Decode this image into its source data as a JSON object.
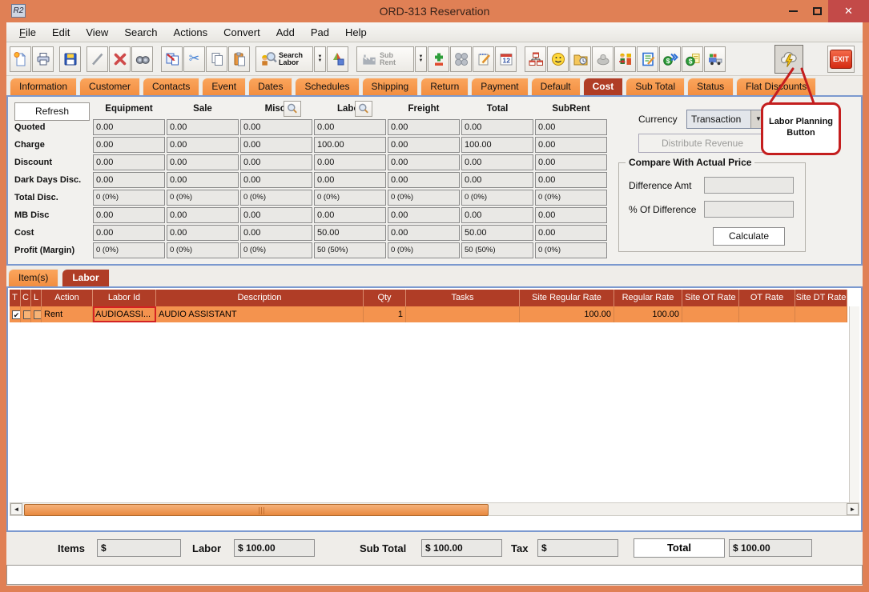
{
  "window": {
    "title": "ORD-313 Reservation",
    "app_icon": "R2"
  },
  "menu": {
    "items": [
      "File",
      "Edit",
      "View",
      "Search",
      "Actions",
      "Convert",
      "Add",
      "Pad",
      "Help"
    ]
  },
  "toolbar": {
    "search_labor": "Search Labor",
    "sub_rent": "Sub Rent",
    "exit": "EXIT",
    "icons": [
      "new-icon",
      "print-icon",
      "save-icon",
      "edit-icon",
      "delete-icon",
      "find-icon",
      "copy-order-icon",
      "cut-icon",
      "copy-icon",
      "paste-icon",
      "search-labor-icon",
      "search-labor-options-icon",
      "convert-icon",
      "sub-rent-icon",
      "sub-rent-options-icon",
      "add-remove-icon",
      "group-icon",
      "notes-icon",
      "calendar-icon",
      "org-chart-icon",
      "customer-icon",
      "history-icon",
      "stamp-icon",
      "labor-crew-icon",
      "edit-notes-icon",
      "post-charges-icon",
      "billing-icon",
      "shipping-icon",
      "labor-planning-icon",
      "exit-icon"
    ]
  },
  "tabs": {
    "items": [
      "Information",
      "Customer",
      "Contacts",
      "Event",
      "Dates",
      "Schedules",
      "Shipping",
      "Return",
      "Payment",
      "Default",
      "Cost",
      "Sub Total",
      "Status",
      "Flat Discounts"
    ],
    "active": "Cost"
  },
  "cost_panel": {
    "refresh": "Refresh",
    "columns": [
      "Equipment",
      "Sale",
      "Misc.",
      "Labor",
      "Freight",
      "Total",
      "SubRent"
    ],
    "rows": [
      {
        "label": "Quoted",
        "small": false,
        "values": [
          "0.00",
          "0.00",
          "0.00",
          "0.00",
          "0.00",
          "0.00",
          "0.00"
        ]
      },
      {
        "label": "Charge",
        "small": false,
        "values": [
          "0.00",
          "0.00",
          "0.00",
          "100.00",
          "0.00",
          "100.00",
          "0.00"
        ]
      },
      {
        "label": "Discount",
        "small": false,
        "values": [
          "0.00",
          "0.00",
          "0.00",
          "0.00",
          "0.00",
          "0.00",
          "0.00"
        ]
      },
      {
        "label": "Dark Days Disc.",
        "small": false,
        "values": [
          "0.00",
          "0.00",
          "0.00",
          "0.00",
          "0.00",
          "0.00",
          "0.00"
        ]
      },
      {
        "label": "Total Disc.",
        "small": true,
        "values": [
          "0 (0%)",
          "0 (0%)",
          "0 (0%)",
          "0 (0%)",
          "0 (0%)",
          "0 (0%)",
          "0 (0%)"
        ]
      },
      {
        "label": "MB Disc",
        "small": false,
        "values": [
          "0.00",
          "0.00",
          "0.00",
          "0.00",
          "0.00",
          "0.00",
          "0.00"
        ]
      },
      {
        "label": "Cost",
        "small": false,
        "values": [
          "0.00",
          "0.00",
          "0.00",
          "50.00",
          "0.00",
          "50.00",
          "0.00"
        ]
      },
      {
        "label": "Profit (Margin)",
        "small": true,
        "values": [
          "0 (0%)",
          "0 (0%)",
          "0 (0%)",
          "50 (50%)",
          "0 (0%)",
          "50 (50%)",
          "0 (0%)"
        ]
      }
    ],
    "currency_label": "Currency",
    "currency_value": "Transaction",
    "distribute_button": "Distribute Revenue",
    "compare": {
      "title": "Compare With Actual Price",
      "difference_label": "Difference Amt",
      "difference_value": "",
      "percent_label": "% Of Difference",
      "percent_value": "",
      "calculate_button": "Calculate"
    }
  },
  "annotation": {
    "line1": "Labor Planning",
    "line2": "Button"
  },
  "detail_tabs": {
    "items": [
      "Item(s)",
      "Labor"
    ],
    "active": "Labor"
  },
  "labor_grid": {
    "columns": [
      "T",
      "C",
      "L",
      "Action",
      "Labor Id",
      "Description",
      "Qty",
      "Tasks",
      "Site Regular Rate",
      "Regular Rate",
      "Site OT Rate",
      "OT Rate",
      "Site DT Rate"
    ],
    "row": {
      "t_checked": true,
      "c_checked": false,
      "l_checked": false,
      "action": "Rent",
      "labor_id": "AUDIOASSI...",
      "description": "AUDIO ASSISTANT",
      "qty": "1",
      "tasks": "",
      "site_regular_rate": "100.00",
      "regular_rate": "100.00",
      "site_ot_rate": "",
      "ot_rate": "",
      "site_dt_rate": ""
    }
  },
  "totals": {
    "items_label": "Items",
    "items_value": "$",
    "labor_label": "Labor",
    "labor_value": "$ 100.00",
    "subtotal_label": "Sub Total",
    "subtotal_value": "$ 100.00",
    "tax_label": "Tax",
    "tax_value": "$",
    "total_label": "Total",
    "total_value": "$ 100.00"
  },
  "colors": {
    "titlebar": "#E08055",
    "accent_red": "#B03D26",
    "tab_orange": "#F8994F",
    "row_orange": "#F4934E",
    "annotation_red": "#C41E1E",
    "close_red": "#C34A48"
  }
}
